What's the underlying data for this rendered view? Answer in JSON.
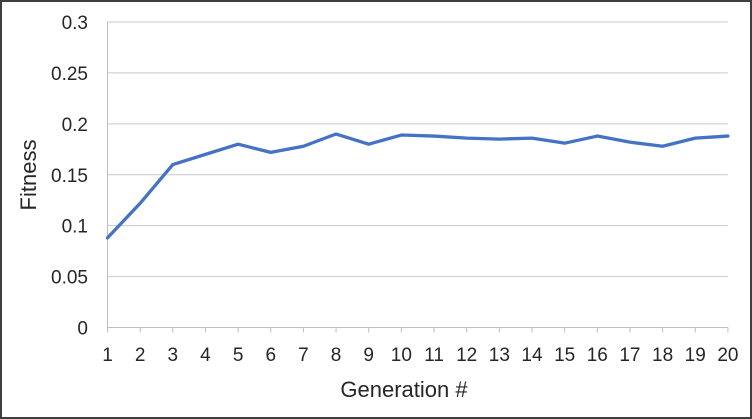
{
  "chart_data": {
    "type": "line",
    "title": "",
    "xlabel": "Generation #",
    "ylabel": "Fitness",
    "x": [
      1,
      2,
      3,
      4,
      5,
      6,
      7,
      8,
      9,
      10,
      11,
      12,
      13,
      14,
      15,
      16,
      17,
      18,
      19,
      20
    ],
    "series": [
      {
        "name": "Fitness",
        "values": [
          0.088,
          0.122,
          0.16,
          0.17,
          0.18,
          0.172,
          0.178,
          0.19,
          0.18,
          0.189,
          0.188,
          0.186,
          0.185,
          0.186,
          0.181,
          0.188,
          0.182,
          0.178,
          0.186,
          0.188
        ]
      }
    ],
    "ylim": [
      0,
      0.3
    ],
    "yticks": {
      "values": [
        0,
        0.05,
        0.1,
        0.15,
        0.2,
        0.25,
        0.3
      ],
      "labels": [
        "0",
        "0.05",
        "0.1",
        "0.15",
        "0.2",
        "0.25",
        "0.3"
      ]
    },
    "xtick_labels": [
      "1",
      "2",
      "3",
      "4",
      "5",
      "6",
      "7",
      "8",
      "9",
      "10",
      "11",
      "12",
      "13",
      "14",
      "15",
      "16",
      "17",
      "18",
      "19",
      "20"
    ],
    "grid": "horizontal",
    "legend": "none",
    "line_color": "#4472C4"
  },
  "colors": {
    "line": "#4472C4",
    "gridline": "#C9C9C9",
    "axis": "#BFBFBF",
    "tick_text": "#262626",
    "title_text": "#262626",
    "frame_border": "#3F3F3F",
    "background": "#FFFFFF"
  }
}
